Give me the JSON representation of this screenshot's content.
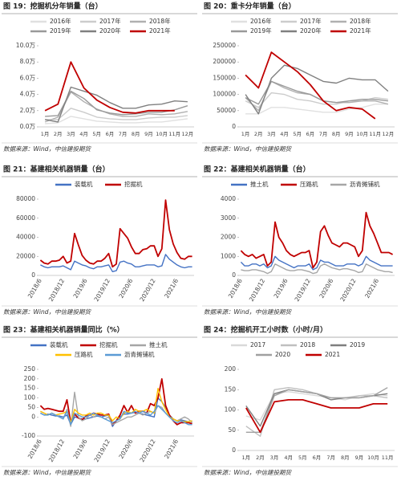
{
  "chart_data": [
    {
      "type": "line",
      "title": "图 19：挖掘机分年销量（台）",
      "source": "数据来源：Wind，中信建投期货",
      "categories": [
        "1月",
        "2月",
        "3月",
        "4月",
        "5月",
        "6月",
        "7月",
        "8月",
        "9月",
        "10月",
        "11月",
        "12月"
      ],
      "ylim": [
        0,
        10
      ],
      "yticks": [
        {
          "value": 0,
          "label": "0.0万"
        },
        {
          "value": 2,
          "label": "2.0万"
        },
        {
          "value": 4,
          "label": "4.0万"
        },
        {
          "value": 6,
          "label": "6.0万"
        },
        {
          "value": 8,
          "label": "8.0万"
        },
        {
          "value": 10,
          "label": "10.0万"
        }
      ],
      "series": [
        {
          "name": "2016年",
          "color": "#e0e0e0",
          "values": [
            0.4,
            0.5,
            1.3,
            1.0,
            0.7,
            0.6,
            0.5,
            0.5,
            0.6,
            0.6,
            0.8,
            1.0
          ]
        },
        {
          "name": "2017年",
          "color": "#cccccc",
          "values": [
            0.9,
            0.9,
            2.3,
            1.8,
            1.2,
            1.0,
            0.9,
            0.9,
            1.1,
            1.2,
            1.2,
            1.4
          ]
        },
        {
          "name": "2018年",
          "color": "#b0b0b0",
          "values": [
            0.6,
            1.2,
            4.3,
            3.1,
            2.2,
            1.6,
            1.3,
            1.3,
            1.6,
            1.5,
            1.6,
            1.9
          ]
        },
        {
          "name": "2019年",
          "color": "#999999",
          "values": [
            1.3,
            1.4,
            4.4,
            3.5,
            2.1,
            1.7,
            1.5,
            1.6,
            1.8,
            1.8,
            2.1,
            2.6
          ]
        },
        {
          "name": "2020年",
          "color": "#808080",
          "values": [
            0.9,
            0.6,
            4.9,
            4.4,
            3.9,
            3.0,
            2.3,
            2.3,
            2.7,
            2.8,
            3.2,
            3.1
          ]
        },
        {
          "name": "2021年",
          "color": "#c00000",
          "values": [
            2.0,
            2.8,
            8.0,
            4.8,
            3.3,
            2.4,
            1.8,
            1.7,
            2.0,
            2.0,
            2.0,
            null
          ]
        }
      ]
    },
    {
      "type": "line",
      "title": "图 20：重卡分年销量（台）",
      "source": "数据来源：Wind，中信建投期货",
      "categories": [
        "1月",
        "2月",
        "3月",
        "4月",
        "5月",
        "6月",
        "7月",
        "8月",
        "9月",
        "10月",
        "11月",
        "12月"
      ],
      "ylim": [
        0,
        250000
      ],
      "yticks": [
        0,
        50000,
        100000,
        150000,
        200000,
        250000
      ],
      "series": [
        {
          "name": "2016年",
          "color": "#e0e0e0",
          "values": [
            40000,
            40000,
            60000,
            60000,
            55000,
            50000,
            45000,
            45000,
            55000,
            60000,
            70000,
            70000
          ]
        },
        {
          "name": "2017年",
          "color": "#cccccc",
          "values": [
            80000,
            60000,
            105000,
            100000,
            85000,
            80000,
            70000,
            70000,
            80000,
            80000,
            90000,
            85000
          ]
        },
        {
          "name": "2018年",
          "color": "#b0b0b0",
          "values": [
            90000,
            50000,
            140000,
            120000,
            105000,
            100000,
            80000,
            75000,
            75000,
            80000,
            80000,
            70000
          ]
        },
        {
          "name": "2019年",
          "color": "#999999",
          "values": [
            90000,
            70000,
            140000,
            125000,
            110000,
            100000,
            80000,
            75000,
            80000,
            85000,
            85000,
            80000
          ]
        },
        {
          "name": "2020年",
          "color": "#808080",
          "values": [
            100000,
            40000,
            150000,
            190000,
            180000,
            160000,
            140000,
            135000,
            150000,
            145000,
            145000,
            110000
          ]
        },
        {
          "name": "2021年",
          "color": "#c00000",
          "values": [
            160000,
            120000,
            230000,
            200000,
            170000,
            130000,
            80000,
            50000,
            60000,
            55000,
            25000,
            null
          ]
        }
      ]
    },
    {
      "type": "line",
      "title": "图 21：基建相关机器销量（台）",
      "source": "数据来源：Wind，中信建投期货",
      "categories": [
        "2018/6",
        null,
        null,
        null,
        null,
        null,
        "2018/12",
        null,
        null,
        null,
        null,
        null,
        "2019/6",
        null,
        null,
        null,
        null,
        null,
        "2019/12",
        null,
        null,
        null,
        null,
        null,
        "2020/6",
        null,
        null,
        null,
        null,
        null,
        "2020/12",
        null,
        null,
        null,
        null,
        null,
        "2021/6",
        null,
        null,
        null,
        null
      ],
      "ylim": [
        0,
        80000
      ],
      "yticks": [
        0,
        20000,
        40000,
        60000,
        80000
      ],
      "series": [
        {
          "name": "装载机",
          "color": "#4472c4",
          "values": [
            11000,
            9000,
            8000,
            9000,
            9000,
            9000,
            10000,
            8000,
            6000,
            15000,
            13000,
            11000,
            10000,
            8000,
            7000,
            9000,
            9000,
            10000,
            11000,
            4000,
            5000,
            14000,
            15000,
            13000,
            12000,
            9000,
            9000,
            10000,
            11000,
            11000,
            11000,
            9000,
            10000,
            22000,
            17000,
            14000,
            11000,
            9000,
            8000,
            9000,
            9000
          ]
        },
        {
          "name": "挖掘机",
          "color": "#c00000",
          "values": [
            16000,
            13000,
            12000,
            15000,
            15000,
            16000,
            20000,
            13000,
            15000,
            44000,
            32000,
            21000,
            16000,
            13000,
            12000,
            15000,
            15000,
            18000,
            23000,
            9000,
            12000,
            49000,
            44000,
            39000,
            30000,
            23000,
            23000,
            27000,
            28000,
            31000,
            31000,
            20000,
            28000,
            79000,
            48000,
            33000,
            24000,
            18000,
            17000,
            20000,
            20000
          ]
        }
      ]
    },
    {
      "type": "line",
      "title": "图 22：基建相关机器销量（台）",
      "source": "数据来源：Wind，中信建投期货",
      "categories": [
        "2018/6",
        null,
        null,
        null,
        null,
        null,
        "2018/12",
        null,
        null,
        null,
        null,
        null,
        "2019/6",
        null,
        null,
        null,
        null,
        null,
        "2019/12",
        null,
        null,
        null,
        null,
        null,
        "2020/6",
        null,
        null,
        null,
        null,
        null,
        "2020/12",
        null,
        null,
        null,
        null,
        null,
        "2021/6",
        null,
        null,
        null,
        null
      ],
      "ylim": [
        0,
        4000
      ],
      "yticks": [
        0,
        1000,
        2000,
        3000,
        4000
      ],
      "series": [
        {
          "name": "推土机",
          "color": "#4472c4",
          "values": [
            700,
            500,
            500,
            600,
            600,
            500,
            600,
            400,
            500,
            1000,
            800,
            700,
            600,
            500,
            400,
            500,
            500,
            500,
            600,
            300,
            400,
            800,
            700,
            700,
            600,
            500,
            500,
            500,
            600,
            600,
            600,
            500,
            600,
            1000,
            800,
            700,
            600,
            500,
            500,
            500,
            500
          ]
        },
        {
          "name": "压路机",
          "color": "#c00000",
          "values": [
            1300,
            1100,
            1000,
            1100,
            900,
            1000,
            1100,
            500,
            700,
            2800,
            2000,
            1700,
            1300,
            1100,
            1000,
            1100,
            1200,
            1200,
            1300,
            400,
            700,
            2300,
            2600,
            2100,
            1700,
            1600,
            1500,
            1700,
            1700,
            1600,
            1500,
            1000,
            1300,
            3300,
            2600,
            2200,
            1700,
            1200,
            1200,
            1200,
            1100
          ]
        },
        {
          "name": "沥青摊铺机",
          "color": "#a6a6a6",
          "values": [
            300,
            250,
            250,
            300,
            300,
            250,
            200,
            100,
            200,
            600,
            500,
            400,
            300,
            250,
            250,
            300,
            300,
            250,
            200,
            100,
            150,
            500,
            600,
            500,
            400,
            350,
            300,
            350,
            350,
            300,
            250,
            150,
            200,
            600,
            500,
            400,
            300,
            250,
            200,
            200,
            150
          ]
        }
      ]
    },
    {
      "type": "line",
      "title": "图 23：基建相关机器销量同比（%）",
      "source": "数据来源：Wind，中信建投期货",
      "categories": [
        "2018/6",
        null,
        null,
        null,
        null,
        null,
        "2018/12",
        null,
        null,
        null,
        null,
        null,
        "2019/6",
        null,
        null,
        null,
        null,
        null,
        "2019/12",
        null,
        null,
        null,
        null,
        null,
        "2020/6",
        null,
        null,
        null,
        null,
        null,
        "2020/12",
        null,
        null,
        null,
        null,
        null,
        "2021/6",
        null,
        null,
        null,
        null
      ],
      "ylim": [
        -100,
        250
      ],
      "yticks": [
        -100,
        0,
        50,
        100,
        150,
        200,
        250
      ],
      "series": [
        {
          "name": "装载机",
          "color": "#4472c4",
          "values": [
            20,
            10,
            15,
            10,
            5,
            5,
            0,
            10,
            -40,
            0,
            -5,
            -10,
            -10,
            -5,
            0,
            5,
            0,
            5,
            10,
            -50,
            -20,
            0,
            15,
            15,
            20,
            25,
            20,
            15,
            10,
            5,
            0,
            100,
            80,
            50,
            10,
            -10,
            -20,
            -15,
            -20,
            -25,
            -20
          ]
        },
        {
          "name": "挖掘机",
          "color": "#c00000",
          "values": [
            60,
            40,
            45,
            40,
            35,
            30,
            30,
            90,
            -30,
            15,
            -5,
            -15,
            5,
            10,
            20,
            15,
            10,
            10,
            15,
            -40,
            -20,
            10,
            60,
            25,
            60,
            20,
            30,
            30,
            20,
            70,
            60,
            100,
            200,
            60,
            10,
            -20,
            -40,
            -30,
            -30,
            -30,
            -35
          ]
        },
        {
          "name": "推土机",
          "color": "#a6a6a6",
          "values": [
            30,
            20,
            10,
            20,
            10,
            0,
            -10,
            40,
            -50,
            130,
            0,
            -20,
            -10,
            10,
            0,
            10,
            0,
            -10,
            0,
            -40,
            -30,
            -20,
            -10,
            0,
            0,
            10,
            20,
            10,
            20,
            30,
            20,
            60,
            50,
            20,
            0,
            -10,
            -20,
            -10,
            0,
            -10,
            -30
          ]
        },
        {
          "name": "压路机",
          "color": "#ffc000",
          "values": [
            30,
            20,
            10,
            20,
            10,
            15,
            20,
            30,
            -30,
            40,
            20,
            10,
            10,
            20,
            10,
            20,
            20,
            10,
            10,
            -20,
            0,
            -10,
            20,
            30,
            20,
            40,
            30,
            30,
            40,
            30,
            20,
            150,
            80,
            40,
            0,
            -10,
            -20,
            -20,
            -25,
            -25,
            -20
          ]
        },
        {
          "name": "沥青摊铺机",
          "color": "#5b9bd5",
          "values": [
            20,
            10,
            10,
            20,
            10,
            0,
            -10,
            30,
            -40,
            20,
            10,
            0,
            0,
            10,
            20,
            10,
            0,
            -10,
            -20,
            -30,
            -20,
            -10,
            30,
            20,
            20,
            30,
            20,
            30,
            20,
            10,
            30,
            60,
            40,
            20,
            0,
            -20,
            -30,
            -20,
            -30,
            -40,
            -40
          ]
        }
      ]
    },
    {
      "type": "line",
      "title": "图 24：挖掘机开工小时数（小时/月）",
      "source": "数据来源：Wind，中信建投期货",
      "categories": [
        "1月",
        "2月",
        "3月",
        "4月",
        "5月",
        "6月",
        "7月",
        "8月",
        "9月",
        "10月",
        "11月"
      ],
      "ylim": [
        0,
        200
      ],
      "yticks": [
        0,
        50,
        100,
        150,
        200
      ],
      "series": [
        {
          "name": "2017",
          "color": "#d9d9d9",
          "values": [
            85,
            75,
            140,
            145,
            140,
            135,
            130,
            125,
            135,
            140,
            135
          ]
        },
        {
          "name": "2018",
          "color": "#bfbfbf",
          "values": [
            60,
            35,
            150,
            155,
            150,
            140,
            130,
            130,
            135,
            135,
            130
          ]
        },
        {
          "name": "2019",
          "color": "#7f7f7f",
          "values": [
            110,
            60,
            140,
            150,
            145,
            140,
            125,
            130,
            130,
            135,
            140
          ]
        },
        {
          "name": "2020",
          "color": "#a0a0a0",
          "values": [
            45,
            45,
            135,
            150,
            145,
            140,
            130,
            130,
            130,
            135,
            155
          ]
        },
        {
          "name": "2021",
          "color": "#c00000",
          "values": [
            105,
            45,
            120,
            125,
            125,
            115,
            105,
            105,
            105,
            115,
            115
          ]
        }
      ]
    }
  ]
}
